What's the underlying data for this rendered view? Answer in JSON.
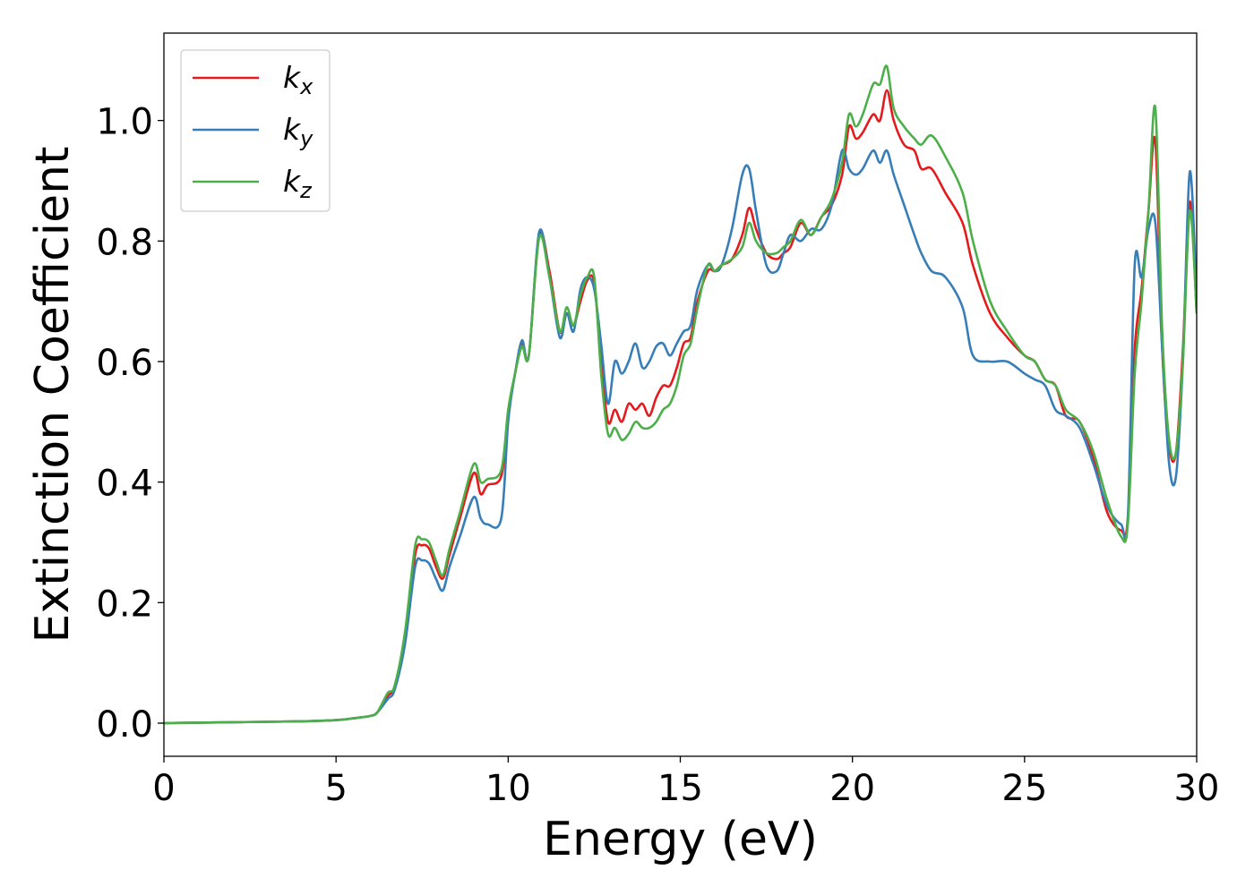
{
  "chart_data": {
    "type": "line",
    "xlabel": "Energy (eV)",
    "ylabel": "Extinction Coefficient",
    "xlim": [
      0,
      30
    ],
    "ylim": [
      -0.055,
      1.145
    ],
    "xticks": [
      0,
      5,
      10,
      15,
      20,
      25,
      30
    ],
    "yticks": [
      0.0,
      0.2,
      0.4,
      0.6,
      0.8,
      1.0
    ],
    "xtick_labels": [
      "0",
      "5",
      "10",
      "15",
      "20",
      "25",
      "30"
    ],
    "ytick_labels": [
      "0.0",
      "0.2",
      "0.4",
      "0.6",
      "0.8",
      "1.0"
    ],
    "grid": false,
    "legend_position": "top-left",
    "series": [
      {
        "name": "k_x",
        "legend_base": "k",
        "legend_sub": "x",
        "color": "#e41a1c",
        "x": [
          0,
          2,
          4,
          5,
          5.5,
          6,
          6.2,
          6.5,
          6.7,
          7,
          7.3,
          7.5,
          7.7,
          7.9,
          8.1,
          8.3,
          8.6,
          9,
          9.2,
          9.4,
          9.8,
          10,
          10.2,
          10.4,
          10.6,
          10.9,
          11.2,
          11.5,
          11.7,
          11.9,
          12.1,
          12.3,
          12.5,
          12.7,
          12.9,
          13.1,
          13.3,
          13.5,
          13.7,
          13.9,
          14.1,
          14.3,
          14.5,
          14.7,
          14.9,
          15.1,
          15.3,
          15.5,
          15.8,
          16,
          16.2,
          16.5,
          16.8,
          17,
          17.2,
          17.5,
          17.8,
          18,
          18.2,
          18.5,
          18.8,
          19.1,
          19.4,
          19.7,
          19.9,
          20.1,
          20.3,
          20.6,
          20.8,
          21,
          21.2,
          21.5,
          21.8,
          22,
          22.3,
          22.7,
          23.2,
          23.5,
          24,
          24.5,
          25,
          25.3,
          25.6,
          25.9,
          26.2,
          26.6,
          27,
          27.4,
          27.8,
          28,
          28.2,
          28.4,
          28.6,
          28.8,
          29,
          29.2,
          29.4,
          29.6,
          29.8,
          30
        ],
        "y": [
          0.0,
          0.0015,
          0.003,
          0.005,
          0.008,
          0.012,
          0.018,
          0.045,
          0.06,
          0.14,
          0.28,
          0.295,
          0.29,
          0.26,
          0.24,
          0.28,
          0.34,
          0.415,
          0.38,
          0.395,
          0.41,
          0.51,
          0.58,
          0.63,
          0.61,
          0.81,
          0.75,
          0.65,
          0.68,
          0.66,
          0.7,
          0.735,
          0.73,
          0.6,
          0.5,
          0.52,
          0.5,
          0.53,
          0.52,
          0.53,
          0.51,
          0.54,
          0.56,
          0.56,
          0.59,
          0.63,
          0.64,
          0.7,
          0.75,
          0.75,
          0.76,
          0.77,
          0.81,
          0.855,
          0.82,
          0.78,
          0.77,
          0.78,
          0.79,
          0.83,
          0.81,
          0.84,
          0.86,
          0.91,
          0.99,
          0.97,
          0.98,
          1.01,
          1.0,
          1.05,
          1.0,
          0.96,
          0.95,
          0.92,
          0.92,
          0.88,
          0.83,
          0.76,
          0.68,
          0.64,
          0.61,
          0.6,
          0.57,
          0.56,
          0.51,
          0.5,
          0.44,
          0.35,
          0.32,
          0.34,
          0.62,
          0.72,
          0.85,
          0.965,
          0.62,
          0.46,
          0.45,
          0.62,
          0.865,
          0.68
        ]
      },
      {
        "name": "k_y",
        "legend_base": "k",
        "legend_sub": "y",
        "color": "#377eb8",
        "x": [
          0,
          2,
          4,
          5,
          5.5,
          6,
          6.2,
          6.5,
          6.7,
          7,
          7.3,
          7.5,
          7.7,
          7.9,
          8.1,
          8.3,
          8.6,
          9,
          9.2,
          9.4,
          9.8,
          10,
          10.2,
          10.4,
          10.6,
          10.9,
          11.2,
          11.5,
          11.7,
          11.9,
          12.1,
          12.3,
          12.5,
          12.7,
          12.9,
          13.1,
          13.3,
          13.5,
          13.7,
          13.9,
          14.1,
          14.3,
          14.5,
          14.7,
          14.9,
          15.1,
          15.3,
          15.5,
          15.8,
          16,
          16.2,
          16.5,
          16.8,
          17,
          17.2,
          17.5,
          17.8,
          18,
          18.2,
          18.5,
          18.8,
          19.1,
          19.4,
          19.7,
          19.9,
          20.1,
          20.3,
          20.6,
          20.8,
          21,
          21.2,
          21.5,
          21.8,
          22,
          22.3,
          22.7,
          23.2,
          23.5,
          24,
          24.5,
          25,
          25.3,
          25.6,
          25.9,
          26.2,
          26.6,
          27,
          27.4,
          27.8,
          28,
          28.2,
          28.4,
          28.6,
          28.8,
          29,
          29.2,
          29.4,
          29.6,
          29.8,
          30
        ],
        "y": [
          0.0,
          0.0015,
          0.003,
          0.005,
          0.008,
          0.012,
          0.018,
          0.04,
          0.055,
          0.13,
          0.26,
          0.27,
          0.265,
          0.24,
          0.22,
          0.26,
          0.31,
          0.375,
          0.34,
          0.33,
          0.34,
          0.5,
          0.58,
          0.635,
          0.61,
          0.815,
          0.74,
          0.64,
          0.68,
          0.65,
          0.72,
          0.74,
          0.72,
          0.63,
          0.53,
          0.6,
          0.58,
          0.6,
          0.63,
          0.59,
          0.6,
          0.625,
          0.63,
          0.61,
          0.63,
          0.65,
          0.66,
          0.72,
          0.76,
          0.75,
          0.76,
          0.82,
          0.91,
          0.92,
          0.85,
          0.76,
          0.75,
          0.78,
          0.81,
          0.8,
          0.82,
          0.82,
          0.86,
          0.95,
          0.92,
          0.91,
          0.92,
          0.95,
          0.93,
          0.95,
          0.91,
          0.86,
          0.81,
          0.78,
          0.75,
          0.74,
          0.69,
          0.61,
          0.6,
          0.6,
          0.58,
          0.57,
          0.56,
          0.52,
          0.51,
          0.49,
          0.43,
          0.36,
          0.33,
          0.34,
          0.76,
          0.74,
          0.82,
          0.83,
          0.62,
          0.43,
          0.41,
          0.6,
          0.915,
          0.7
        ]
      },
      {
        "name": "k_z",
        "legend_base": "k",
        "legend_sub": "z",
        "color": "#4daf4a",
        "x": [
          0,
          2,
          4,
          5,
          5.5,
          6,
          6.2,
          6.5,
          6.7,
          7,
          7.3,
          7.5,
          7.7,
          7.9,
          8.1,
          8.3,
          8.6,
          9,
          9.2,
          9.4,
          9.8,
          10,
          10.2,
          10.4,
          10.6,
          10.9,
          11.2,
          11.5,
          11.7,
          11.9,
          12.1,
          12.3,
          12.5,
          12.7,
          12.9,
          13.1,
          13.3,
          13.5,
          13.7,
          13.9,
          14.1,
          14.3,
          14.5,
          14.7,
          14.9,
          15.1,
          15.3,
          15.5,
          15.8,
          16,
          16.2,
          16.5,
          16.8,
          17,
          17.2,
          17.5,
          17.8,
          18,
          18.2,
          18.5,
          18.8,
          19.1,
          19.4,
          19.7,
          19.9,
          20.1,
          20.3,
          20.6,
          20.8,
          21,
          21.2,
          21.5,
          21.8,
          22,
          22.3,
          22.7,
          23.2,
          23.5,
          24,
          24.5,
          25,
          25.3,
          25.6,
          25.9,
          26.2,
          26.6,
          27,
          27.4,
          27.8,
          28,
          28.2,
          28.4,
          28.6,
          28.8,
          29,
          29.2,
          29.4,
          29.6,
          29.8,
          30
        ],
        "y": [
          0.0,
          0.0015,
          0.003,
          0.005,
          0.008,
          0.012,
          0.018,
          0.05,
          0.062,
          0.15,
          0.295,
          0.305,
          0.3,
          0.27,
          0.245,
          0.29,
          0.35,
          0.43,
          0.4,
          0.405,
          0.42,
          0.52,
          0.58,
          0.625,
          0.61,
          0.805,
          0.74,
          0.65,
          0.69,
          0.66,
          0.71,
          0.74,
          0.74,
          0.58,
          0.48,
          0.49,
          0.47,
          0.48,
          0.5,
          0.49,
          0.49,
          0.5,
          0.52,
          0.53,
          0.56,
          0.61,
          0.63,
          0.69,
          0.76,
          0.75,
          0.76,
          0.77,
          0.79,
          0.83,
          0.8,
          0.78,
          0.78,
          0.79,
          0.8,
          0.835,
          0.81,
          0.84,
          0.87,
          0.93,
          1.01,
          0.99,
          1.01,
          1.06,
          1.06,
          1.09,
          1.02,
          0.99,
          0.97,
          0.96,
          0.975,
          0.94,
          0.88,
          0.8,
          0.7,
          0.65,
          0.61,
          0.6,
          0.57,
          0.56,
          0.52,
          0.5,
          0.45,
          0.37,
          0.31,
          0.33,
          0.58,
          0.7,
          0.85,
          1.02,
          0.65,
          0.47,
          0.45,
          0.6,
          0.85,
          0.68
        ]
      }
    ]
  }
}
